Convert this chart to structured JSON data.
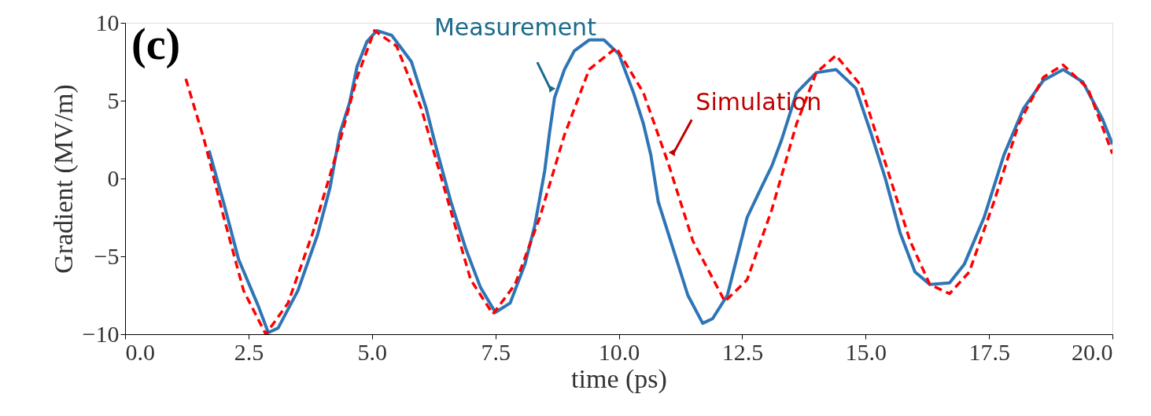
{
  "chart_data": {
    "type": "line",
    "xlabel": "time (ps)",
    "ylabel": "Gradient (MV/m)",
    "xlim": [
      0,
      20
    ],
    "ylim": [
      -10,
      10
    ],
    "xticks": [
      {
        "value": 0,
        "label": "0.0"
      },
      {
        "value": 2.5,
        "label": "2.5"
      },
      {
        "value": 5,
        "label": "5.0"
      },
      {
        "value": 7.5,
        "label": "7.5"
      },
      {
        "value": 10,
        "label": "10.0"
      },
      {
        "value": 12.5,
        "label": "12.5"
      },
      {
        "value": 15,
        "label": "15.0"
      },
      {
        "value": 17.5,
        "label": "17.5"
      },
      {
        "value": 20,
        "label": "20.0"
      }
    ],
    "yticks": [
      -10,
      -5,
      0,
      5,
      10
    ],
    "grid": false,
    "series": [
      {
        "color": "#2e75b6",
        "line_style": "solid",
        "x": [
          1.7,
          2.0,
          2.3,
          2.7,
          2.9,
          3.1,
          3.5,
          3.9,
          4.15,
          4.35,
          4.55,
          4.7,
          4.9,
          5.1,
          5.4,
          5.8,
          6.1,
          6.3,
          6.6,
          6.9,
          7.2,
          7.5,
          7.8,
          8.1,
          8.3,
          8.5,
          8.6,
          8.7,
          8.9,
          9.1,
          9.4,
          9.7,
          10.0,
          10.3,
          10.5,
          10.65,
          10.8,
          11.1,
          11.4,
          11.7,
          11.9,
          12.2,
          12.4,
          12.6,
          12.9,
          13.1,
          13.3,
          13.6,
          14.0,
          14.4,
          14.8,
          15.1,
          15.4,
          15.7,
          16.0,
          16.3,
          16.7,
          17.0,
          17.4,
          17.8,
          18.2,
          18.6,
          19.0,
          19.4,
          19.8,
          20.0
        ],
        "values": [
          1.8,
          -1.6,
          -5.2,
          -8.2,
          -9.9,
          -9.6,
          -7.2,
          -3.6,
          -0.6,
          2.9,
          4.9,
          7.2,
          8.8,
          9.5,
          9.2,
          7.5,
          4.5,
          2.0,
          -1.5,
          -4.5,
          -7.0,
          -8.6,
          -8.0,
          -5.5,
          -3.0,
          0.5,
          3.0,
          5.2,
          7.0,
          8.2,
          8.9,
          8.9,
          8.0,
          5.5,
          3.5,
          1.5,
          -1.5,
          -4.5,
          -7.5,
          -9.3,
          -9.0,
          -7.5,
          -5.0,
          -2.5,
          -0.5,
          0.8,
          2.5,
          5.5,
          6.8,
          7.0,
          5.8,
          3.0,
          0.0,
          -3.5,
          -6.0,
          -6.8,
          -6.7,
          -5.5,
          -2.5,
          1.5,
          4.5,
          6.3,
          7.0,
          6.2,
          3.8,
          2.2
        ]
      },
      {
        "color": "#ff0000",
        "line_style": "dashed",
        "x": [
          1.23,
          1.6,
          2.0,
          2.4,
          2.85,
          3.3,
          3.8,
          4.3,
          4.7,
          5.05,
          5.5,
          6.0,
          6.5,
          7.0,
          7.45,
          7.9,
          8.4,
          8.9,
          9.4,
          9.95,
          10.5,
          11.0,
          11.5,
          12.15,
          12.6,
          13.1,
          13.6,
          14.0,
          14.4,
          14.9,
          15.4,
          15.9,
          16.3,
          16.7,
          17.1,
          17.6,
          18.1,
          18.6,
          19.0,
          19.5,
          20.0
        ],
        "values": [
          6.4,
          2.5,
          -2.5,
          -7.2,
          -10.0,
          -8.0,
          -3.5,
          1.8,
          6.5,
          9.5,
          8.5,
          4.5,
          -1.0,
          -6.5,
          -8.7,
          -6.8,
          -2.5,
          2.8,
          7.0,
          8.4,
          5.5,
          1.0,
          -4.0,
          -7.9,
          -6.5,
          -2.0,
          3.5,
          6.8,
          7.9,
          6.0,
          1.0,
          -4.0,
          -6.8,
          -7.4,
          -6.0,
          -1.5,
          3.5,
          6.5,
          7.3,
          5.8,
          1.6
        ]
      }
    ],
    "annotations": [
      "(c)",
      {
        "text": "Measurement",
        "x": 8.7,
        "y": 5.2
      },
      {
        "text": "Simulation",
        "x": 11.0,
        "y": 1.0
      }
    ]
  }
}
